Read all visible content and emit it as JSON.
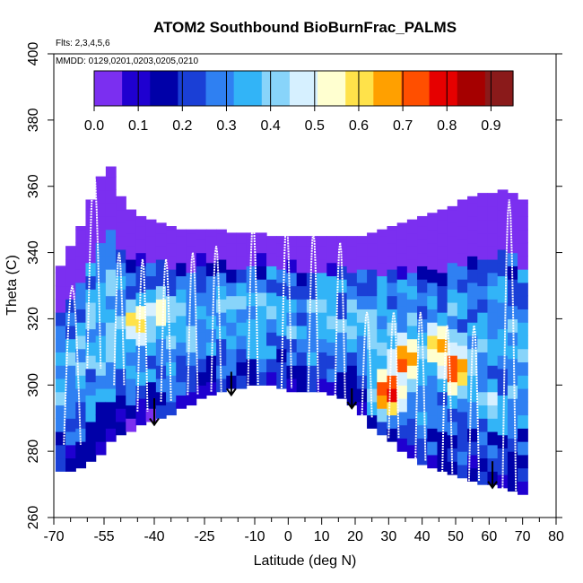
{
  "chart_data": {
    "type": "heatmap",
    "title": "ATOM2 Southbound BioBurnFrac_PALMS",
    "annotations": [
      "Flts: 2,3,4,5,6",
      "MMDD: 0129,0201,0203,0205,0210"
    ],
    "xlabel": "Latitude (deg N)",
    "ylabel": "Theta (C)",
    "xlim": [
      -70,
      80
    ],
    "ylim": [
      260,
      400
    ],
    "x_ticks": [
      -70,
      -55,
      -40,
      -25,
      -10,
      0,
      10,
      20,
      30,
      40,
      50,
      60,
      70,
      80
    ],
    "x_tick_labels": [
      "-70",
      "-55",
      "-40",
      "-25",
      "-10",
      "0",
      "10",
      "20",
      "30",
      "40",
      "50",
      "60",
      "70",
      "80"
    ],
    "x_minor_ticks": [
      -65,
      -60,
      -50,
      -45,
      -35,
      -30,
      -20,
      -15,
      -5,
      5,
      15,
      25,
      35,
      45,
      55,
      65,
      75
    ],
    "y_ticks": [
      260,
      280,
      300,
      320,
      340,
      360,
      380,
      400
    ],
    "y_tick_labels": [
      "260",
      "280",
      "300",
      "320",
      "340",
      "360",
      "380",
      "400"
    ],
    "colorbar": {
      "ticks": [
        0.0,
        0.1,
        0.2,
        0.3,
        0.4,
        0.5,
        0.6,
        0.7,
        0.8,
        0.9
      ],
      "tick_labels": [
        "0.0",
        "0.1",
        "0.2",
        "0.3",
        "0.4",
        "0.5",
        "0.6",
        "0.7",
        "0.8",
        "0.9"
      ],
      "range": [
        0.0,
        0.95
      ],
      "colors": [
        "#7b2ff0",
        "#1f00d0",
        "#0000a8",
        "#1a3fd6",
        "#2f80f2",
        "#32b4f7",
        "#88d4fa",
        "#d6f0ff",
        "#ffffd0",
        "#ffe24a",
        "#ffa000",
        "#ff4f00",
        "#e60000",
        "#a50000",
        "#8a1a1a"
      ]
    },
    "lat_bins": [
      -68,
      -65,
      -62,
      -59,
      -56,
      -53,
      -50,
      -47,
      -44,
      -41,
      -38,
      -35,
      -32,
      -29,
      -26,
      -23,
      -20,
      -17,
      -14,
      -11,
      -8,
      -5,
      -2,
      1,
      4,
      7,
      10,
      13,
      16,
      19,
      22,
      25,
      28,
      31,
      34,
      37,
      40,
      43,
      46,
      49,
      52,
      55,
      58,
      61,
      64,
      67,
      70
    ],
    "surface_theta": [
      274,
      274,
      275,
      277,
      279,
      283,
      285,
      286,
      288,
      289,
      290,
      291,
      293,
      294,
      296,
      297,
      298,
      299,
      299,
      300,
      300,
      300,
      299,
      298,
      298,
      298,
      298,
      297,
      296,
      294,
      291,
      287,
      285,
      283,
      280,
      278,
      276,
      275,
      274,
      273,
      272,
      271,
      270,
      270,
      269,
      268,
      267
    ],
    "top_theta": [
      336,
      342,
      348,
      356,
      363,
      366,
      357,
      353,
      351,
      350,
      349,
      348,
      347,
      347,
      347,
      347,
      347,
      346,
      346,
      346,
      346,
      345,
      345,
      345,
      345,
      345,
      345,
      345,
      345,
      345,
      345,
      346,
      347,
      348,
      349,
      350,
      351,
      352,
      353,
      354,
      356,
      357,
      358,
      358,
      359,
      358,
      356
    ],
    "hotspots": [
      {
        "lat": 35,
        "theta": 308,
        "value": 0.72
      },
      {
        "lat": 30,
        "theta": 298,
        "value": 0.78
      },
      {
        "lat": 45,
        "theta": 312,
        "value": 0.65
      },
      {
        "lat": 50,
        "theta": 305,
        "value": 0.75
      },
      {
        "lat": -45,
        "theta": 319,
        "value": 0.6
      },
      {
        "lat": -38,
        "theta": 322,
        "value": 0.55
      },
      {
        "lat": 60,
        "theta": 295,
        "value": 0.45
      }
    ],
    "flight_profiles": [
      {
        "lat_start": -67,
        "lat_end": -62,
        "theta_low": 282,
        "theta_high": 330
      },
      {
        "lat_start": -60,
        "lat_end": -56,
        "theta_low": 305,
        "theta_high": 364
      },
      {
        "lat_start": -52,
        "lat_end": -49,
        "theta_low": 300,
        "theta_high": 340
      },
      {
        "lat_start": -45,
        "lat_end": -42,
        "theta_low": 292,
        "theta_high": 338
      },
      {
        "lat_start": -38,
        "lat_end": -35,
        "theta_low": 295,
        "theta_high": 338
      },
      {
        "lat_start": -30,
        "lat_end": -27,
        "theta_low": 297,
        "theta_high": 340
      },
      {
        "lat_start": -23,
        "lat_end": -20,
        "theta_low": 298,
        "theta_high": 342
      },
      {
        "lat_start": -12,
        "lat_end": -9,
        "theta_low": 300,
        "theta_high": 349
      },
      {
        "lat_start": -2,
        "lat_end": 1,
        "theta_low": 299,
        "theta_high": 349
      },
      {
        "lat_start": 6,
        "lat_end": 9,
        "theta_low": 298,
        "theta_high": 346
      },
      {
        "lat_start": 14,
        "lat_end": 17,
        "theta_low": 296,
        "theta_high": 343
      },
      {
        "lat_start": 22,
        "lat_end": 25,
        "theta_low": 290,
        "theta_high": 322
      },
      {
        "lat_start": 30,
        "lat_end": 33,
        "theta_low": 284,
        "theta_high": 322
      },
      {
        "lat_start": 38,
        "lat_end": 41,
        "theta_low": 277,
        "theta_high": 322
      },
      {
        "lat_start": 46,
        "lat_end": 49,
        "theta_low": 273,
        "theta_high": 318
      },
      {
        "lat_start": 54,
        "lat_end": 57,
        "theta_low": 271,
        "theta_high": 318
      },
      {
        "lat_start": 64,
        "lat_end": 68,
        "theta_low": 268,
        "theta_high": 356
      }
    ],
    "arrows": [
      {
        "lat": -40,
        "theta_from": 296,
        "theta_to": 288
      },
      {
        "lat": -17,
        "theta_from": 304,
        "theta_to": 297
      },
      {
        "lat": 19,
        "theta_from": 299,
        "theta_to": 293
      },
      {
        "lat": 61,
        "theta_from": 277,
        "theta_to": 269
      }
    ]
  }
}
